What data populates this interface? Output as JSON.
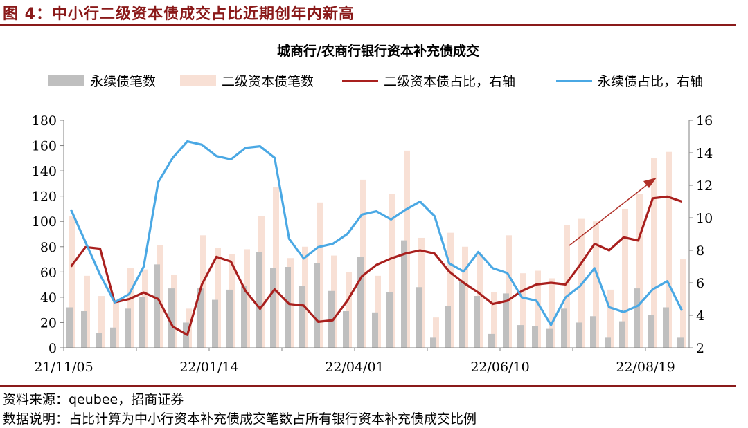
{
  "figure_title": "图 4：中小行二级资本债成交占比近期创年内新高",
  "source_text": "资料来源：qeubee，招商证券",
  "note_text": "数据说明：占比计算为中小行资本补充债成交笔数占所有银行资本补充债成交比例",
  "chart_data": {
    "type": "bar",
    "title": "城商行/农商行银行资本补充债成交",
    "legend_position": "top",
    "grid": false,
    "xlabels": [
      "21/11/05",
      "22/01/14",
      "22/04/01",
      "22/06/10",
      "22/08/19"
    ],
    "ylim_left": [
      0,
      180
    ],
    "yticks_left": [
      0,
      20,
      40,
      60,
      80,
      100,
      120,
      140,
      160,
      180
    ],
    "ylim_right": [
      2,
      16
    ],
    "yticks_right": [
      2,
      4,
      6,
      8,
      10,
      12,
      14,
      16
    ],
    "colors": {
      "perpetual_bar": "#bfbfbf",
      "tier2_bar": "#f8e0d5",
      "tier2_line": "#a9201e",
      "perpetual_line": "#4aa8e4",
      "axis": "#808080",
      "arrow": "#b03028"
    },
    "series": [
      {
        "name": "永续债笔数",
        "kind": "bar",
        "axis": "left",
        "values": [
          32,
          29,
          12,
          16,
          31,
          40,
          66,
          47,
          20,
          47,
          38,
          46,
          49,
          76,
          63,
          64,
          49,
          67,
          45,
          29,
          72,
          28,
          44,
          85,
          48,
          8,
          33,
          53,
          41,
          11,
          43,
          18,
          17,
          15,
          31,
          20,
          25,
          8,
          21,
          47,
          26,
          32,
          8
        ]
      },
      {
        "name": "二级资本债笔数",
        "kind": "bar",
        "axis": "left",
        "values": [
          104,
          57,
          41,
          37,
          63,
          62,
          81,
          58,
          31,
          89,
          79,
          74,
          78,
          104,
          127,
          71,
          80,
          115,
          73,
          60,
          133,
          57,
          122,
          156,
          87,
          24,
          91,
          80,
          74,
          44,
          89,
          59,
          61,
          55,
          97,
          102,
          100,
          46,
          110,
          122,
          150,
          155,
          70
        ]
      },
      {
        "name": "二级资本债占比，右轴",
        "kind": "line",
        "axis": "right",
        "values": [
          7.0,
          8.2,
          8.1,
          4.8,
          5.0,
          5.4,
          5.0,
          3.3,
          2.8,
          5.9,
          7.6,
          7.3,
          5.5,
          4.4,
          5.6,
          4.7,
          4.6,
          3.6,
          3.7,
          4.9,
          6.4,
          7.1,
          7.5,
          7.8,
          8.0,
          7.8,
          6.7,
          6.0,
          5.4,
          4.7,
          4.9,
          5.5,
          5.9,
          6.0,
          5.9,
          7.1,
          8.4,
          8.0,
          8.8,
          8.6,
          11.2,
          11.3,
          11.0
        ]
      },
      {
        "name": "永续债占比，右轴",
        "kind": "line",
        "axis": "right",
        "values": [
          10.5,
          8.5,
          6.5,
          4.8,
          5.3,
          7.0,
          12.2,
          13.7,
          14.7,
          14.5,
          13.8,
          13.6,
          14.3,
          14.4,
          13.7,
          8.7,
          7.5,
          8.2,
          8.4,
          9.0,
          10.2,
          10.4,
          9.9,
          10.5,
          11.0,
          10.1,
          7.2,
          6.7,
          7.9,
          6.9,
          6.6,
          5.1,
          4.9,
          3.4,
          5.1,
          5.8,
          6.9,
          4.5,
          4.2,
          4.6,
          5.6,
          6.1,
          4.3
        ]
      }
    ]
  }
}
